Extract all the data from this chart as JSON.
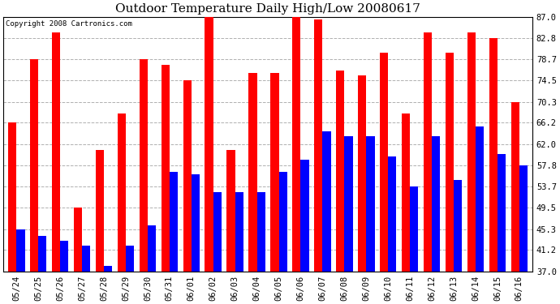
{
  "title": "Outdoor Temperature Daily High/Low 20080617",
  "copyright": "Copyright 2008 Cartronics.com",
  "dates": [
    "05/24",
    "05/25",
    "05/26",
    "05/27",
    "05/28",
    "05/29",
    "05/30",
    "05/31",
    "06/01",
    "06/02",
    "06/03",
    "06/04",
    "06/05",
    "06/06",
    "06/07",
    "06/08",
    "06/09",
    "06/10",
    "06/11",
    "06/12",
    "06/13",
    "06/14",
    "06/15",
    "06/16"
  ],
  "highs": [
    66.2,
    78.7,
    84.0,
    49.5,
    60.8,
    68.0,
    78.7,
    77.5,
    74.5,
    87.0,
    60.8,
    76.0,
    76.0,
    87.0,
    86.5,
    76.5,
    75.5,
    80.0,
    68.0,
    84.0,
    80.0,
    84.0,
    82.8,
    70.3
  ],
  "lows": [
    45.3,
    44.0,
    43.0,
    42.0,
    38.0,
    42.0,
    46.0,
    56.5,
    56.0,
    52.5,
    52.5,
    52.5,
    56.5,
    59.0,
    64.5,
    63.5,
    63.5,
    59.5,
    53.7,
    63.5,
    55.0,
    65.5,
    60.0,
    57.8
  ],
  "high_color": "#ff0000",
  "low_color": "#0000ff",
  "bg_color": "#ffffff",
  "grid_color": "#b0b0b0",
  "yticks": [
    37.0,
    41.2,
    45.3,
    49.5,
    53.7,
    57.8,
    62.0,
    66.2,
    70.3,
    74.5,
    78.7,
    82.8,
    87.0
  ],
  "ymin": 37.0,
  "ymax": 87.0,
  "bar_width": 0.38
}
